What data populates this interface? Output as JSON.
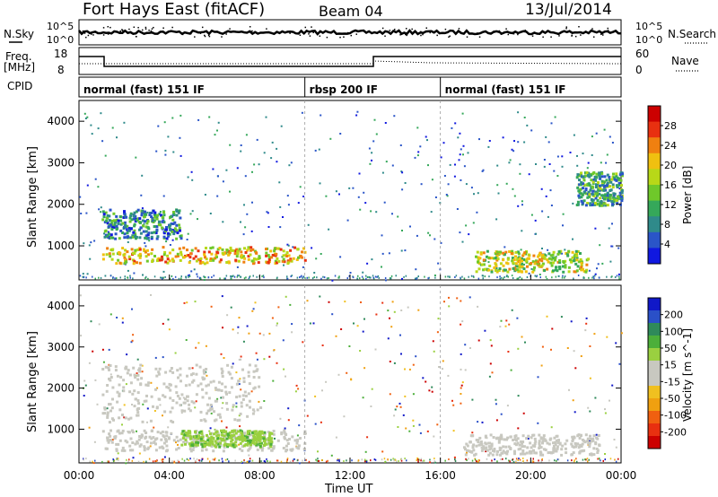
{
  "header": {
    "station": "Fort Hays East (fitACF)",
    "beam": "Beam 04",
    "date": "13/Jul/2014"
  },
  "left_labels": {
    "nsky": "N.Sky",
    "freq_line1": "Freq.",
    "freq_line2": "[MHz]",
    "cpid": "CPID"
  },
  "right_labels": {
    "nsearch": "N.Search",
    "nave": "Nave"
  },
  "noise_panel": {
    "left_ticks": [
      "10^5",
      "10^0"
    ],
    "right_ticks": [
      "10^5",
      "10^0"
    ]
  },
  "freq_panel": {
    "left_ticks": [
      "18",
      "8"
    ],
    "right_ticks": [
      "60",
      "0"
    ]
  },
  "cpid_segments": [
    {
      "label": "normal (fast) 151 IF",
      "start_h": 0,
      "end_h": 10
    },
    {
      "label": "rbsp 200 IF",
      "start_h": 10,
      "end_h": 16
    },
    {
      "label": "normal (fast) 151 IF",
      "start_h": 16,
      "end_h": 24
    }
  ],
  "axes": {
    "ylabel": "Slant Range [km]",
    "xlabel": "Time UT",
    "y_ticks": [
      "1000",
      "2000",
      "3000",
      "4000"
    ],
    "x_ticks": [
      "00:00",
      "04:00",
      "08:00",
      "12:00",
      "16:00",
      "20:00",
      "00:00"
    ]
  },
  "chart_data": {
    "type": "heatmap",
    "x_range_hours": [
      0,
      24
    ],
    "y_range_km": [
      180,
      4500
    ],
    "panels": [
      {
        "title": "Power [dB]",
        "colorbar_ticks": [
          "4",
          "8",
          "12",
          "16",
          "20",
          "24",
          "28"
        ],
        "colors": [
          "#1018e0",
          "#2a55c8",
          "#2f8a8a",
          "#35a85a",
          "#6fc82a",
          "#b8d818",
          "#f0c010",
          "#f08010",
          "#e83010",
          "#cc0000"
        ],
        "features": [
          {
            "name": "near-range band",
            "t_start": 1.0,
            "t_end": 10.0,
            "range_start_km": 600,
            "range_end_km": 1000,
            "power_db": 28
          },
          {
            "name": "upper arc",
            "t_start": 1.0,
            "t_end": 4.5,
            "range_start_km": 1200,
            "range_end_km": 1900,
            "power_db": 16
          },
          {
            "name": "evening band",
            "t_start": 17.5,
            "t_end": 22.5,
            "range_start_km": 400,
            "range_end_km": 900,
            "power_db": 24
          },
          {
            "name": "far-range patch",
            "t_start": 22.0,
            "t_end": 24.0,
            "range_start_km": 2000,
            "range_end_km": 2800,
            "power_db": 18
          }
        ]
      },
      {
        "title": "Velocity [m s^-1]",
        "colorbar_ticks": [
          "200",
          "100",
          "50",
          "15",
          "-15",
          "-50",
          "-100",
          "-200"
        ],
        "colors": [
          "#1018c8",
          "#2a50c8",
          "#2f8a5a",
          "#4caf3a",
          "#9ad040",
          "#c8c8c0",
          "#c8c8c0",
          "#f0c020",
          "#f0a010",
          "#f06010",
          "#e83010",
          "#cc0000"
        ],
        "features": [
          {
            "name": "ground scatter band",
            "t_start": 1.0,
            "t_end": 10.0,
            "range_start_km": 500,
            "range_end_km": 1000,
            "velocity_ms": 0
          },
          {
            "name": "green patches",
            "t_start": 4.5,
            "t_end": 8.5,
            "range_start_km": 600,
            "range_end_km": 1000,
            "velocity_ms": 60
          },
          {
            "name": "grey arc",
            "t_start": 1.0,
            "t_end": 8.0,
            "range_start_km": 1200,
            "range_end_km": 2600,
            "velocity_ms": 0
          },
          {
            "name": "evening grey band",
            "t_start": 17.0,
            "t_end": 23.0,
            "range_start_km": 400,
            "range_end_km": 900,
            "velocity_ms": 0
          }
        ]
      }
    ]
  },
  "title_power": "Power [dB]",
  "title_velocity": "Velocity [m s^-1]"
}
